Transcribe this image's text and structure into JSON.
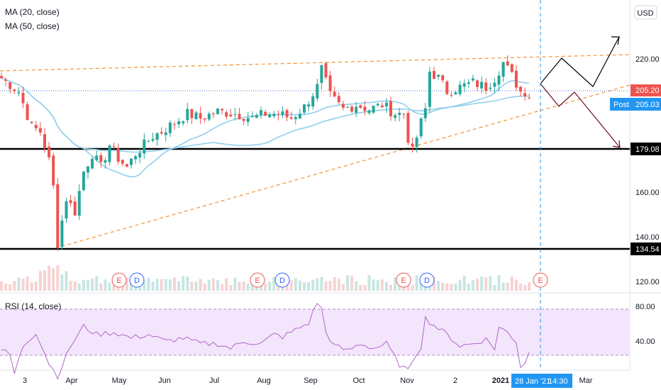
{
  "chart_data": {
    "type": "candlestick",
    "currency": "USD",
    "indicators": {
      "ma20": "MA (20, close)",
      "ma50": "MA (50, close)",
      "rsi": "RSI (14, close)"
    },
    "price_axis": {
      "ticks": [
        120,
        140,
        160,
        180,
        200,
        220
      ],
      "tick_labels": [
        "120.00",
        "140.00",
        "160.00",
        "",
        "",
        "220.00"
      ]
    },
    "rsi_axis": {
      "ticks": [
        40,
        80
      ],
      "tick_labels": [
        "40.00",
        "80.00"
      ],
      "band": [
        30,
        70
      ]
    },
    "time_axis": {
      "labels": [
        "3",
        "Apr",
        "May",
        "Jun",
        "Jul",
        "Aug",
        "Sep",
        "Oct",
        "Nov",
        "2",
        "2021",
        "Mar"
      ],
      "cursor_label": "28 Jan '21",
      "cursor_time": "14:30"
    },
    "price_tags": {
      "last": "205.20",
      "post_label": "Post",
      "post": "205.03",
      "support_high": "179.08",
      "support_low": "134.54"
    },
    "horizontal_levels": [
      179.08,
      134.54
    ],
    "events": [
      "E",
      "D",
      "E",
      "D",
      "E",
      "D",
      "E"
    ],
    "colors": {
      "up": "#26a69a",
      "down": "#ef5350",
      "ma": "#90d0ec",
      "trend": "#f59331",
      "rsi_line": "#b067c7",
      "rsi_band": "#f3e5fb",
      "cursor": "#2196f3",
      "projection_up": "#000000",
      "projection_down": "#6b0f1a"
    },
    "price_close_path": [
      [
        0,
        212
      ],
      [
        4,
        206
      ],
      [
        7,
        190
      ],
      [
        9,
        188
      ],
      [
        11,
        175
      ],
      [
        12,
        163
      ],
      [
        13,
        138
      ],
      [
        15,
        158
      ],
      [
        17,
        152
      ],
      [
        19,
        170
      ],
      [
        21,
        178
      ],
      [
        23,
        172
      ],
      [
        25,
        182
      ],
      [
        27,
        176
      ],
      [
        29,
        172
      ],
      [
        31,
        178
      ],
      [
        33,
        182
      ],
      [
        35,
        186
      ],
      [
        37,
        188
      ],
      [
        40,
        192
      ],
      [
        43,
        196
      ],
      [
        46,
        194
      ],
      [
        50,
        197
      ],
      [
        54,
        196
      ],
      [
        58,
        194
      ],
      [
        61,
        196
      ],
      [
        64,
        196
      ],
      [
        67,
        194
      ],
      [
        70,
        199
      ],
      [
        73,
        208
      ],
      [
        74,
        216
      ],
      [
        76,
        204
      ],
      [
        79,
        198
      ],
      [
        82,
        200
      ],
      [
        85,
        198
      ],
      [
        88,
        200
      ],
      [
        91,
        196
      ],
      [
        93,
        196
      ],
      [
        94,
        185
      ],
      [
        95,
        179
      ],
      [
        97,
        192
      ],
      [
        98,
        198
      ],
      [
        99,
        215
      ],
      [
        101,
        212
      ],
      [
        103,
        206
      ],
      [
        106,
        208
      ],
      [
        109,
        210
      ],
      [
        112,
        208
      ],
      [
        114,
        212
      ],
      [
        116,
        219
      ],
      [
        118,
        213
      ],
      [
        120,
        206
      ],
      [
        121,
        206
      ],
      [
        122,
        204
      ]
    ],
    "rsi_path": [
      [
        0,
        45
      ],
      [
        2,
        40
      ],
      [
        3,
        24
      ],
      [
        5,
        48
      ],
      [
        8,
        60
      ],
      [
        11,
        33
      ],
      [
        13,
        22
      ],
      [
        16,
        48
      ],
      [
        19,
        65
      ],
      [
        22,
        58
      ],
      [
        26,
        60
      ],
      [
        30,
        55
      ],
      [
        34,
        58
      ],
      [
        38,
        52
      ],
      [
        42,
        55
      ],
      [
        46,
        50
      ],
      [
        50,
        50
      ],
      [
        53,
        46
      ],
      [
        56,
        52
      ],
      [
        60,
        50
      ],
      [
        63,
        58
      ],
      [
        65,
        56
      ],
      [
        68,
        62
      ],
      [
        71,
        68
      ],
      [
        73,
        86
      ],
      [
        74,
        80
      ],
      [
        75,
        60
      ],
      [
        77,
        48
      ],
      [
        80,
        44
      ],
      [
        83,
        50
      ],
      [
        86,
        46
      ],
      [
        89,
        50
      ],
      [
        92,
        32
      ],
      [
        94,
        26
      ],
      [
        95,
        36
      ],
      [
        97,
        48
      ],
      [
        98,
        72
      ],
      [
        100,
        66
      ],
      [
        103,
        58
      ],
      [
        106,
        48
      ],
      [
        109,
        50
      ],
      [
        112,
        54
      ],
      [
        114,
        46
      ],
      [
        115,
        64
      ],
      [
        117,
        60
      ],
      [
        119,
        52
      ],
      [
        120,
        30
      ],
      [
        121,
        34
      ],
      [
        122,
        42
      ]
    ]
  }
}
